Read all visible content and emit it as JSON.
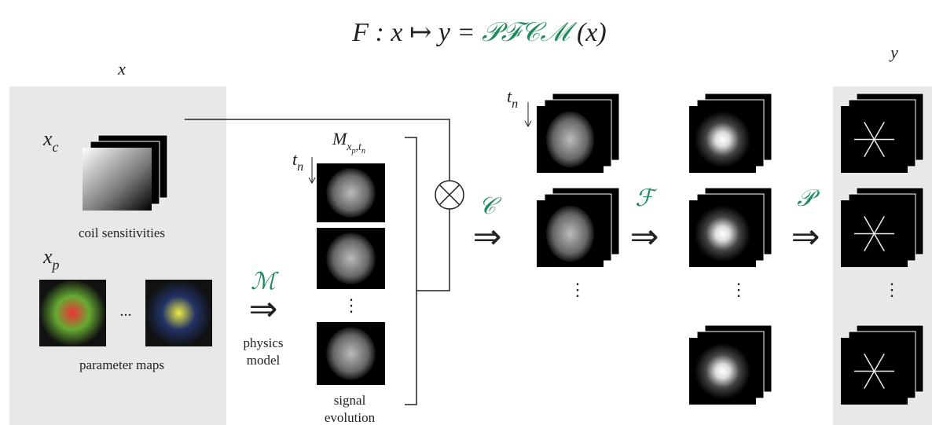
{
  "formula": {
    "lhs": "F : x ↦ y = ",
    "operators": "𝒫ℱ𝒞ℳ",
    "rhs": " (x)"
  },
  "input": {
    "label": "x",
    "coil": {
      "symbol": "x",
      "sub": "c",
      "caption": "coil sensitivities"
    },
    "params": {
      "symbol": "x",
      "sub": "p",
      "ellipsis": "...",
      "caption": "parameter maps"
    }
  },
  "model": {
    "operator": "ℳ",
    "caption": [
      "physics",
      "model"
    ]
  },
  "signal": {
    "symbol": "M",
    "sub": "x",
    "subsub": "p",
    "sub2": ",t",
    "sub2sub": "n",
    "time": "t",
    "time_sub": "n",
    "ellipsis": "⋮",
    "caption": [
      "signal",
      "evolution"
    ]
  },
  "coil_op": {
    "operator": "𝒞"
  },
  "coil_images": {
    "time": "t",
    "time_sub": "n",
    "ellipsis": "⋮"
  },
  "fourier_op": {
    "operator": "ℱ"
  },
  "kspace": {
    "ellipsis": "⋮"
  },
  "sampling_op": {
    "operator": "𝒫"
  },
  "output": {
    "label": "y",
    "ellipsis": "⋮"
  }
}
